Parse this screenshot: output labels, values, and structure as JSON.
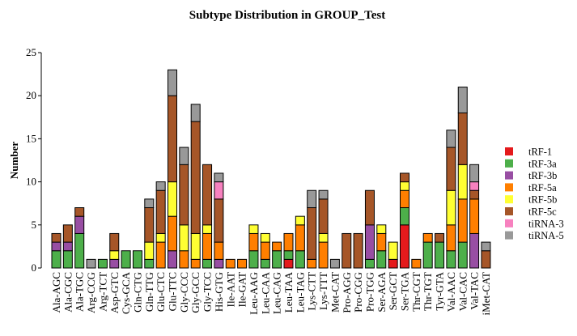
{
  "chart_data": {
    "type": "bar",
    "stacked": true,
    "title": "Subtype Distribution in GROUP_Test",
    "xlabel": "",
    "ylabel": "Number",
    "ylim": [
      0,
      25
    ],
    "yticks": [
      0,
      5,
      10,
      15,
      20,
      25
    ],
    "grid": false,
    "legend_position": "right",
    "categories": [
      "Ala-AGC",
      "Ala-CGC",
      "Ala-TGC",
      "Arg-CCG",
      "Arg-TCT",
      "Asp-GTC",
      "Cys-GCA",
      "Gln-CTG",
      "Gln-TTG",
      "Glu-CTC",
      "Glu-TTC",
      "Gly-CCC",
      "Gly-GCC",
      "Gly-TCC",
      "His-GTG",
      "Ile-AAT",
      "Ile-GAT",
      "Leu-AAG",
      "Leu-CAA",
      "Leu-CAG",
      "Leu-TAA",
      "Leu-TAG",
      "Lys-CTT",
      "Lys-TTT",
      "Met-CAT",
      "Pro-AGG",
      "Pro-CGG",
      "Pro-TGG",
      "Ser-AGA",
      "Ser-GCT",
      "Ser-TGA",
      "Thr-CGT",
      "Thr-TGT",
      "Tyr-GTA",
      "Val-AAC",
      "Val-CAC",
      "Val-TAC",
      "iMet-CAT"
    ],
    "series": [
      {
        "name": "tRF-1",
        "color": "#E41A1C",
        "values": [
          0,
          0,
          0,
          0,
          0,
          0,
          0,
          0,
          0,
          0,
          0,
          0,
          0,
          0,
          0,
          0,
          0,
          0,
          0,
          0,
          1,
          0,
          0,
          0,
          0,
          0,
          0,
          0,
          0,
          1,
          5,
          0,
          0,
          0,
          0,
          0,
          0,
          0
        ]
      },
      {
        "name": "tRF-3a",
        "color": "#4DAF4A",
        "values": [
          2,
          2,
          4,
          0,
          1,
          0,
          2,
          2,
          1,
          0,
          0,
          0,
          0,
          1,
          0,
          0,
          0,
          2,
          1,
          2,
          1,
          2,
          0,
          0,
          0,
          0,
          0,
          1,
          2,
          0,
          2,
          0,
          3,
          3,
          2,
          3,
          0,
          0
        ]
      },
      {
        "name": "tRF-3b",
        "color": "#984EA3",
        "values": [
          1,
          1,
          2,
          0,
          0,
          1,
          0,
          0,
          0,
          0,
          2,
          0,
          0,
          0,
          1,
          0,
          0,
          0,
          0,
          0,
          0,
          0,
          0,
          0,
          0,
          0,
          0,
          4,
          0,
          0,
          0,
          0,
          0,
          0,
          0,
          0,
          4,
          0
        ]
      },
      {
        "name": "tRF-5a",
        "color": "#FF7F00",
        "values": [
          0,
          0,
          0,
          0,
          0,
          0,
          0,
          0,
          0,
          3,
          4,
          2,
          1,
          3,
          2,
          1,
          1,
          2,
          2,
          1,
          2,
          3,
          1,
          3,
          0,
          0,
          0,
          0,
          2,
          0,
          2,
          1,
          1,
          0,
          3,
          5,
          4,
          0
        ]
      },
      {
        "name": "tRF-5b",
        "color": "#FFFF33",
        "values": [
          0,
          0,
          0,
          0,
          0,
          1,
          0,
          0,
          2,
          1,
          4,
          3,
          3,
          1,
          0,
          0,
          0,
          1,
          1,
          0,
          0,
          1,
          0,
          1,
          0,
          0,
          0,
          0,
          1,
          2,
          1,
          0,
          0,
          0,
          4,
          4,
          0,
          0
        ]
      },
      {
        "name": "tRF-5c",
        "color": "#A65628",
        "values": [
          1,
          2,
          1,
          0,
          0,
          2,
          0,
          0,
          4,
          5,
          10,
          7,
          13,
          7,
          5,
          0,
          0,
          0,
          0,
          0,
          0,
          0,
          6,
          4,
          0,
          4,
          4,
          4,
          0,
          0,
          1,
          0,
          0,
          1,
          5,
          6,
          1,
          2
        ]
      },
      {
        "name": "tiRNA-3",
        "color": "#F781BF",
        "values": [
          0,
          0,
          0,
          0,
          0,
          0,
          0,
          0,
          0,
          0,
          0,
          0,
          0,
          0,
          2,
          0,
          0,
          0,
          0,
          0,
          0,
          0,
          0,
          0,
          0,
          0,
          0,
          0,
          0,
          0,
          0,
          0,
          0,
          0,
          0,
          0,
          1,
          0
        ]
      },
      {
        "name": "tiRNA-5",
        "color": "#999999",
        "values": [
          0,
          0,
          0,
          1,
          0,
          0,
          0,
          0,
          1,
          1,
          3,
          2,
          2,
          0,
          1,
          0,
          0,
          0,
          0,
          0,
          0,
          0,
          2,
          1,
          1,
          0,
          0,
          0,
          0,
          0,
          0,
          0,
          0,
          0,
          2,
          3,
          2,
          1
        ]
      }
    ]
  }
}
